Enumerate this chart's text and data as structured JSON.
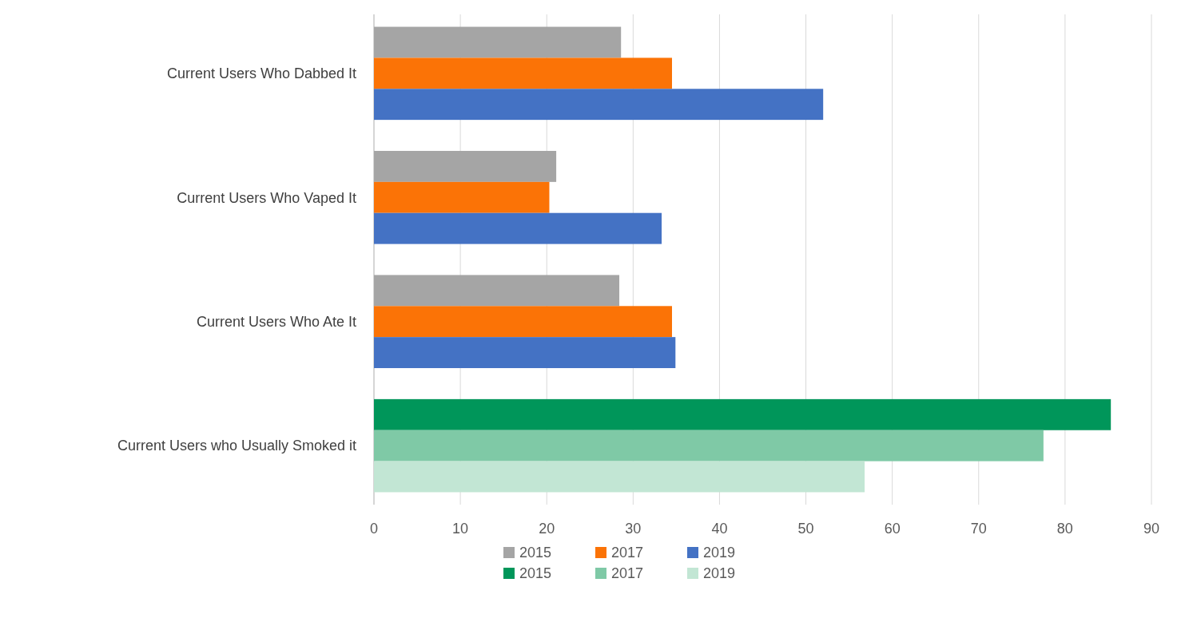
{
  "chart_data": {
    "type": "bar",
    "orientation": "horizontal",
    "categories": [
      "Current Users Who Dabbed It",
      "Current Users Who Vaped It",
      "Current Users Who Ate It",
      "Current Users who Usually Smoked it"
    ],
    "series": [
      {
        "name": "2015",
        "color": "#a5a5a5",
        "values": [
          28.6,
          21.1,
          28.4,
          null
        ]
      },
      {
        "name": "2017",
        "color": "#fb7306",
        "values": [
          34.5,
          20.3,
          34.5,
          null
        ]
      },
      {
        "name": "2019",
        "color": "#4472c4",
        "values": [
          52.0,
          33.3,
          34.9,
          null
        ]
      },
      {
        "name": "2015",
        "color": "#00965a",
        "values": [
          null,
          null,
          null,
          85.3
        ]
      },
      {
        "name": "2017",
        "color": "#7fc9a6",
        "values": [
          null,
          null,
          null,
          77.5
        ]
      },
      {
        "name": "2019",
        "color": "#c2e6d4",
        "values": [
          null,
          null,
          null,
          56.8
        ]
      }
    ],
    "xlim": [
      0,
      90
    ],
    "xticks": [
      0,
      10,
      20,
      30,
      40,
      50,
      60,
      70,
      80,
      90
    ],
    "grid": "x",
    "legend": "bottom"
  }
}
